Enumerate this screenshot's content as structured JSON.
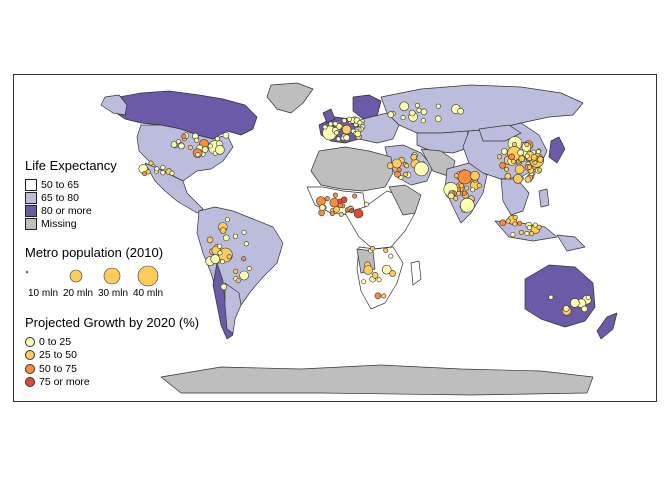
{
  "life_expectancy": {
    "title": "Life Expectancy",
    "classes": [
      {
        "label": "50 to 65",
        "color": "#ffffff"
      },
      {
        "label": "65 to 80",
        "color": "#bcbddc"
      },
      {
        "label": "80 or more",
        "color": "#6a5aa8"
      },
      {
        "label": "Missing",
        "color": "#bebebe"
      }
    ]
  },
  "metro_population": {
    "title": "Metro population (2010)",
    "sizes": [
      {
        "label": "10 mln",
        "value": 10
      },
      {
        "label": "20 mln",
        "value": 20
      },
      {
        "label": "30 mln",
        "value": 30
      },
      {
        "label": "40 mln",
        "value": 40
      }
    ]
  },
  "projected_growth": {
    "title": "Projected Growth by 2020 (%)",
    "classes": [
      {
        "label": "0 to 25",
        "color": "#ffffb2"
      },
      {
        "label": "25 to 50",
        "color": "#fecc5c"
      },
      {
        "label": "50 to 75",
        "color": "#fd8d3c"
      },
      {
        "label": "75 or more",
        "color": "#e34a33"
      }
    ]
  },
  "colors": {
    "border": "#333333",
    "ocean": "#ffffff"
  }
}
